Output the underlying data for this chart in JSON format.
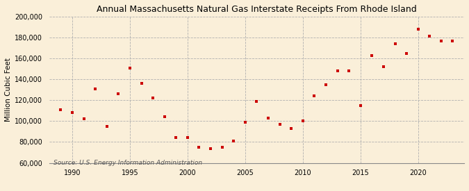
{
  "title": "Annual Massachusetts Natural Gas Interstate Receipts From Rhode Island",
  "ylabel": "Million Cubic Feet",
  "source": "Source: U.S. Energy Information Administration",
  "background_color": "#faefd9",
  "plot_bg_color": "#faefd9",
  "marker_color": "#cc0000",
  "years": [
    1989,
    1990,
    1991,
    1992,
    1993,
    1994,
    1995,
    1996,
    1997,
    1998,
    1999,
    2000,
    2001,
    2002,
    2003,
    2004,
    2005,
    2006,
    2007,
    2008,
    2009,
    2010,
    2011,
    2012,
    2013,
    2014,
    2015,
    2016,
    2017,
    2018,
    2019,
    2020,
    2021,
    2022,
    2023
  ],
  "values": [
    111000,
    108000,
    102000,
    131000,
    95000,
    126000,
    151000,
    136000,
    122000,
    104000,
    84000,
    84000,
    75000,
    74000,
    75000,
    81000,
    99000,
    119000,
    103000,
    97000,
    93000,
    100000,
    124000,
    135000,
    148000,
    148000,
    115000,
    163000,
    152000,
    174000,
    165000,
    188000,
    181000,
    177000,
    177000
  ],
  "ylim": [
    60000,
    200000
  ],
  "yticks": [
    60000,
    80000,
    100000,
    120000,
    140000,
    160000,
    180000,
    200000
  ],
  "xlim": [
    1988.0,
    2024.0
  ],
  "xticks": [
    1990,
    1995,
    2000,
    2005,
    2010,
    2015,
    2020
  ],
  "grid_color": "#b0b0b0",
  "title_fontsize": 9,
  "label_fontsize": 7.5,
  "tick_fontsize": 7,
  "source_fontsize": 6.5
}
